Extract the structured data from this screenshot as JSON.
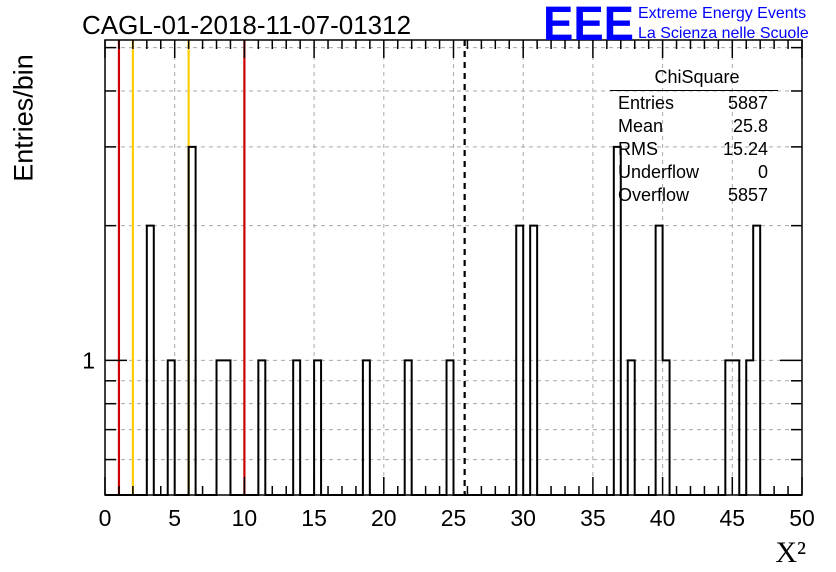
{
  "title": "CAGL-01-2018-11-07-01312",
  "logo": {
    "mark": "EEE",
    "line1": "Extreme Energy Events",
    "line2": "La Scienza nelle Scuole",
    "color": "#0000ff"
  },
  "stats": {
    "name": "ChiSquare",
    "rows": [
      {
        "label": "Entries",
        "value": "5887"
      },
      {
        "label": "Mean",
        "value": "25.8"
      },
      {
        "label": "RMS",
        "value": "15.24"
      },
      {
        "label": "Underflow",
        "value": "0"
      },
      {
        "label": "Overflow",
        "value": "5857"
      }
    ]
  },
  "chart_data": {
    "type": "bar",
    "histogram": true,
    "xlabel": "X²",
    "ylabel": "Entries/bin",
    "xlim": [
      0,
      50
    ],
    "ylim": [
      0.5,
      5.2
    ],
    "yscale": "log",
    "grid": true,
    "x_ticks": [
      0,
      5,
      10,
      15,
      20,
      25,
      30,
      35,
      40,
      45,
      50
    ],
    "y_ticks": [
      1
    ],
    "bin_width": 0.5,
    "bins": [
      {
        "x": 3,
        "value": 2
      },
      {
        "x": 4.5,
        "value": 1
      },
      {
        "x": 6,
        "value": 3
      },
      {
        "x": 8,
        "value": 1
      },
      {
        "x": 8.5,
        "value": 1
      },
      {
        "x": 11,
        "value": 1
      },
      {
        "x": 13.5,
        "value": 1
      },
      {
        "x": 15,
        "value": 1
      },
      {
        "x": 18.5,
        "value": 1
      },
      {
        "x": 21.5,
        "value": 1
      },
      {
        "x": 24.5,
        "value": 1
      },
      {
        "x": 29.5,
        "value": 2
      },
      {
        "x": 30.5,
        "value": 2
      },
      {
        "x": 36.5,
        "value": 3
      },
      {
        "x": 37.5,
        "value": 1
      },
      {
        "x": 39.5,
        "value": 2
      },
      {
        "x": 40,
        "value": 1
      },
      {
        "x": 44.5,
        "value": 1
      },
      {
        "x": 45,
        "value": 1
      },
      {
        "x": 46,
        "value": 1
      },
      {
        "x": 46.5,
        "value": 2
      }
    ],
    "reference_lines": [
      {
        "x": 1,
        "color": "#cc0000",
        "style": "solid"
      },
      {
        "x": 2,
        "color": "#ffcc00",
        "style": "solid"
      },
      {
        "x": 6,
        "color": "#ffcc00",
        "style": "solid"
      },
      {
        "x": 10,
        "color": "#cc0000",
        "style": "solid"
      },
      {
        "x": 25.8,
        "color": "#000000",
        "style": "dashed"
      }
    ]
  }
}
